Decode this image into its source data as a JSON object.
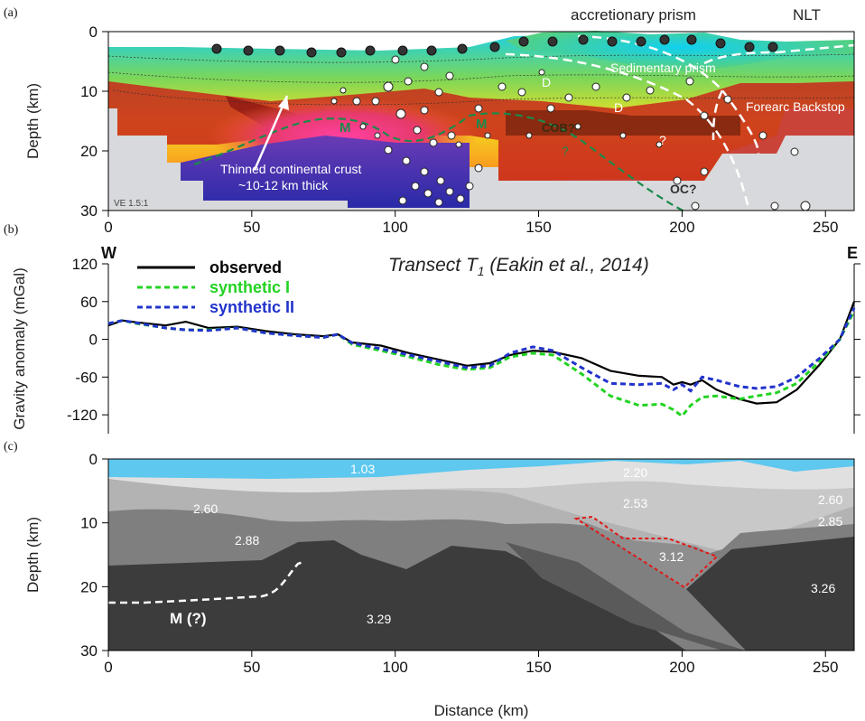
{
  "panels": {
    "a": {
      "label": "(a)",
      "ylabel": "Depth (km)",
      "ve": "VE 1.5:1",
      "top_labels": [
        "accretionary prism",
        "NLT"
      ],
      "annotations": {
        "sedimentary_prism": "Sedimentary prism",
        "forearc_backstop": "Forearc Backstop",
        "thinned_line1": "Thinned continental crust",
        "thinned_line2": "~10-12 km thick",
        "m1": "M",
        "m2": "M",
        "cob": "COB?",
        "q1": "?",
        "q2": "?",
        "oc": "OC?",
        "d1": "D",
        "d2": "D"
      }
    },
    "b": {
      "label": "(b)",
      "ylabel": "Gravity anomaly (mGal)",
      "west": "W",
      "east": "E",
      "title": "Transect T",
      "title_sub": "1",
      "title_tail": " (Eakin et al., 2014)"
    },
    "c": {
      "label": "(c)",
      "ylabel": "Depth (km)",
      "xlabel": "Distance (km)",
      "moho": "M (?)"
    }
  },
  "chart_data": [
    {
      "type": "heatmap",
      "panel": "a",
      "xlabel": "",
      "ylabel": "Depth (km)",
      "xlim": [
        0,
        260
      ],
      "ylim": [
        30,
        0
      ],
      "xticks": [
        0,
        50,
        100,
        150,
        200,
        250
      ],
      "yticks": [
        0,
        10,
        20,
        30
      ]
    },
    {
      "type": "line",
      "panel": "b",
      "xlabel": "",
      "ylabel": "Gravity anomaly (mGal)",
      "xlim": [
        0,
        260
      ],
      "ylim": [
        -150,
        120
      ],
      "xticks": [
        0,
        50,
        100,
        150,
        200,
        250
      ],
      "yticks": [
        120,
        60,
        0,
        -60,
        -120
      ],
      "legend_position": "top-left",
      "series": [
        {
          "name": "observed",
          "color": "#000000",
          "dash": "solid",
          "x": [
            0,
            5,
            10,
            20,
            27,
            35,
            45,
            55,
            65,
            75,
            80,
            85,
            95,
            105,
            115,
            125,
            133,
            140,
            148,
            155,
            165,
            175,
            185,
            193,
            197,
            200,
            203,
            207,
            212,
            220,
            226,
            233,
            240,
            248,
            255,
            260
          ],
          "y": [
            22,
            30,
            27,
            22,
            28,
            18,
            20,
            13,
            8,
            5,
            8,
            -5,
            -10,
            -22,
            -32,
            -42,
            -38,
            -25,
            -18,
            -20,
            -30,
            -50,
            -58,
            -60,
            -72,
            -68,
            -72,
            -65,
            -80,
            -95,
            -102,
            -100,
            -80,
            -40,
            0,
            60
          ]
        },
        {
          "name": "synthetic I",
          "color": "#22d322",
          "dash": "dashed",
          "x": [
            0,
            5,
            10,
            20,
            27,
            35,
            45,
            55,
            65,
            75,
            80,
            85,
            95,
            105,
            115,
            125,
            133,
            140,
            148,
            155,
            165,
            175,
            185,
            193,
            197,
            200,
            203,
            207,
            212,
            220,
            226,
            233,
            240,
            248,
            255,
            260
          ],
          "y": [
            25,
            30,
            25,
            18,
            15,
            15,
            18,
            10,
            6,
            3,
            8,
            -8,
            -18,
            -28,
            -40,
            -48,
            -45,
            -28,
            -22,
            -25,
            -55,
            -90,
            -105,
            -103,
            -112,
            -122,
            -105,
            -92,
            -90,
            -95,
            -90,
            -85,
            -70,
            -35,
            0,
            45
          ]
        },
        {
          "name": "synthetic II",
          "color": "#2233cc",
          "dash": "dashed",
          "x": [
            0,
            5,
            10,
            20,
            27,
            35,
            45,
            55,
            65,
            75,
            80,
            85,
            95,
            105,
            115,
            125,
            133,
            140,
            148,
            155,
            165,
            175,
            185,
            193,
            197,
            200,
            203,
            207,
            212,
            220,
            226,
            233,
            240,
            248,
            255,
            260
          ],
          "y": [
            25,
            30,
            26,
            18,
            15,
            14,
            18,
            10,
            6,
            3,
            8,
            -6,
            -15,
            -25,
            -35,
            -45,
            -42,
            -22,
            -12,
            -18,
            -45,
            -70,
            -72,
            -70,
            -80,
            -72,
            -82,
            -60,
            -65,
            -75,
            -78,
            -75,
            -60,
            -30,
            0,
            50
          ]
        }
      ]
    },
    {
      "type": "area",
      "panel": "c",
      "xlabel": "Distance (km)",
      "ylabel": "Depth (km)",
      "xlim": [
        0,
        260
      ],
      "ylim": [
        30,
        0
      ],
      "xticks": [
        0,
        50,
        100,
        150,
        200,
        250
      ],
      "yticks": [
        0,
        10,
        20,
        30
      ],
      "density_labels": [
        "1.03",
        "2.20",
        "2.53",
        "2.60",
        "2.60",
        "2.88",
        "2.85",
        "3.12",
        "3.26",
        "3.29"
      ],
      "colors": {
        "water": "#5ec8ef",
        "d220": "#e0e0e0",
        "d253": "#c8c8c8",
        "d260": "#bdbdbd",
        "d288": "#7f7f7f",
        "d285": "#7a7a7a",
        "d312": "#8e8e8e",
        "d326": "#3c3c3c",
        "d329": "#3c3c3c"
      }
    }
  ]
}
